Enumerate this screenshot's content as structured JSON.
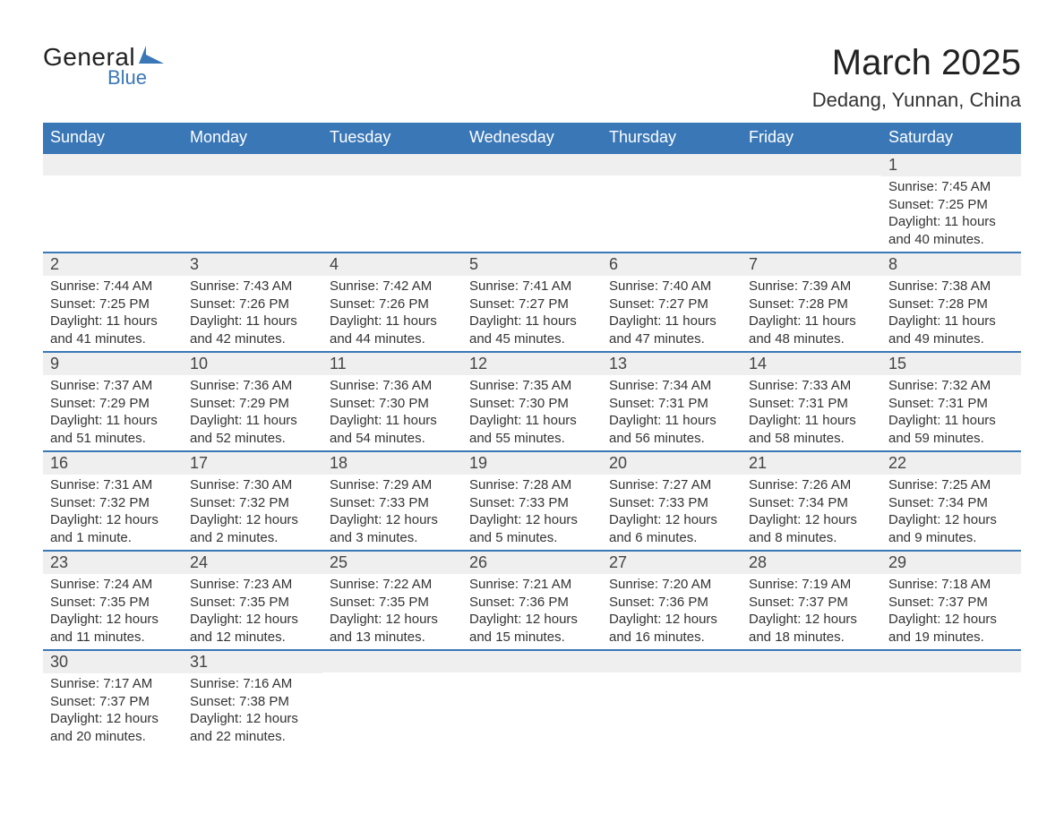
{
  "logo": {
    "text_general": "General",
    "text_blue": "Blue",
    "mark_color": "#3a77b7"
  },
  "title": "March 2025",
  "location": "Dedang, Yunnan, China",
  "colors": {
    "header_bg": "#3a77b7",
    "header_text": "#ffffff",
    "row_divider": "#3a77b7",
    "daynum_bg": "#efefef",
    "body_text": "#333333",
    "page_bg": "#ffffff"
  },
  "typography": {
    "title_fontsize": 40,
    "location_fontsize": 22,
    "dayhead_fontsize": 18,
    "daynum_fontsize": 18,
    "body_fontsize": 15
  },
  "day_headers": [
    "Sunday",
    "Monday",
    "Tuesday",
    "Wednesday",
    "Thursday",
    "Friday",
    "Saturday"
  ],
  "weeks": [
    [
      null,
      null,
      null,
      null,
      null,
      null,
      {
        "n": "1",
        "sunrise": "Sunrise: 7:45 AM",
        "sunset": "Sunset: 7:25 PM",
        "daylight": "Daylight: 11 hours and 40 minutes."
      }
    ],
    [
      {
        "n": "2",
        "sunrise": "Sunrise: 7:44 AM",
        "sunset": "Sunset: 7:25 PM",
        "daylight": "Daylight: 11 hours and 41 minutes."
      },
      {
        "n": "3",
        "sunrise": "Sunrise: 7:43 AM",
        "sunset": "Sunset: 7:26 PM",
        "daylight": "Daylight: 11 hours and 42 minutes."
      },
      {
        "n": "4",
        "sunrise": "Sunrise: 7:42 AM",
        "sunset": "Sunset: 7:26 PM",
        "daylight": "Daylight: 11 hours and 44 minutes."
      },
      {
        "n": "5",
        "sunrise": "Sunrise: 7:41 AM",
        "sunset": "Sunset: 7:27 PM",
        "daylight": "Daylight: 11 hours and 45 minutes."
      },
      {
        "n": "6",
        "sunrise": "Sunrise: 7:40 AM",
        "sunset": "Sunset: 7:27 PM",
        "daylight": "Daylight: 11 hours and 47 minutes."
      },
      {
        "n": "7",
        "sunrise": "Sunrise: 7:39 AM",
        "sunset": "Sunset: 7:28 PM",
        "daylight": "Daylight: 11 hours and 48 minutes."
      },
      {
        "n": "8",
        "sunrise": "Sunrise: 7:38 AM",
        "sunset": "Sunset: 7:28 PM",
        "daylight": "Daylight: 11 hours and 49 minutes."
      }
    ],
    [
      {
        "n": "9",
        "sunrise": "Sunrise: 7:37 AM",
        "sunset": "Sunset: 7:29 PM",
        "daylight": "Daylight: 11 hours and 51 minutes."
      },
      {
        "n": "10",
        "sunrise": "Sunrise: 7:36 AM",
        "sunset": "Sunset: 7:29 PM",
        "daylight": "Daylight: 11 hours and 52 minutes."
      },
      {
        "n": "11",
        "sunrise": "Sunrise: 7:36 AM",
        "sunset": "Sunset: 7:30 PM",
        "daylight": "Daylight: 11 hours and 54 minutes."
      },
      {
        "n": "12",
        "sunrise": "Sunrise: 7:35 AM",
        "sunset": "Sunset: 7:30 PM",
        "daylight": "Daylight: 11 hours and 55 minutes."
      },
      {
        "n": "13",
        "sunrise": "Sunrise: 7:34 AM",
        "sunset": "Sunset: 7:31 PM",
        "daylight": "Daylight: 11 hours and 56 minutes."
      },
      {
        "n": "14",
        "sunrise": "Sunrise: 7:33 AM",
        "sunset": "Sunset: 7:31 PM",
        "daylight": "Daylight: 11 hours and 58 minutes."
      },
      {
        "n": "15",
        "sunrise": "Sunrise: 7:32 AM",
        "sunset": "Sunset: 7:31 PM",
        "daylight": "Daylight: 11 hours and 59 minutes."
      }
    ],
    [
      {
        "n": "16",
        "sunrise": "Sunrise: 7:31 AM",
        "sunset": "Sunset: 7:32 PM",
        "daylight": "Daylight: 12 hours and 1 minute."
      },
      {
        "n": "17",
        "sunrise": "Sunrise: 7:30 AM",
        "sunset": "Sunset: 7:32 PM",
        "daylight": "Daylight: 12 hours and 2 minutes."
      },
      {
        "n": "18",
        "sunrise": "Sunrise: 7:29 AM",
        "sunset": "Sunset: 7:33 PM",
        "daylight": "Daylight: 12 hours and 3 minutes."
      },
      {
        "n": "19",
        "sunrise": "Sunrise: 7:28 AM",
        "sunset": "Sunset: 7:33 PM",
        "daylight": "Daylight: 12 hours and 5 minutes."
      },
      {
        "n": "20",
        "sunrise": "Sunrise: 7:27 AM",
        "sunset": "Sunset: 7:33 PM",
        "daylight": "Daylight: 12 hours and 6 minutes."
      },
      {
        "n": "21",
        "sunrise": "Sunrise: 7:26 AM",
        "sunset": "Sunset: 7:34 PM",
        "daylight": "Daylight: 12 hours and 8 minutes."
      },
      {
        "n": "22",
        "sunrise": "Sunrise: 7:25 AM",
        "sunset": "Sunset: 7:34 PM",
        "daylight": "Daylight: 12 hours and 9 minutes."
      }
    ],
    [
      {
        "n": "23",
        "sunrise": "Sunrise: 7:24 AM",
        "sunset": "Sunset: 7:35 PM",
        "daylight": "Daylight: 12 hours and 11 minutes."
      },
      {
        "n": "24",
        "sunrise": "Sunrise: 7:23 AM",
        "sunset": "Sunset: 7:35 PM",
        "daylight": "Daylight: 12 hours and 12 minutes."
      },
      {
        "n": "25",
        "sunrise": "Sunrise: 7:22 AM",
        "sunset": "Sunset: 7:35 PM",
        "daylight": "Daylight: 12 hours and 13 minutes."
      },
      {
        "n": "26",
        "sunrise": "Sunrise: 7:21 AM",
        "sunset": "Sunset: 7:36 PM",
        "daylight": "Daylight: 12 hours and 15 minutes."
      },
      {
        "n": "27",
        "sunrise": "Sunrise: 7:20 AM",
        "sunset": "Sunset: 7:36 PM",
        "daylight": "Daylight: 12 hours and 16 minutes."
      },
      {
        "n": "28",
        "sunrise": "Sunrise: 7:19 AM",
        "sunset": "Sunset: 7:37 PM",
        "daylight": "Daylight: 12 hours and 18 minutes."
      },
      {
        "n": "29",
        "sunrise": "Sunrise: 7:18 AM",
        "sunset": "Sunset: 7:37 PM",
        "daylight": "Daylight: 12 hours and 19 minutes."
      }
    ],
    [
      {
        "n": "30",
        "sunrise": "Sunrise: 7:17 AM",
        "sunset": "Sunset: 7:37 PM",
        "daylight": "Daylight: 12 hours and 20 minutes."
      },
      {
        "n": "31",
        "sunrise": "Sunrise: 7:16 AM",
        "sunset": "Sunset: 7:38 PM",
        "daylight": "Daylight: 12 hours and 22 minutes."
      },
      null,
      null,
      null,
      null,
      null
    ]
  ]
}
